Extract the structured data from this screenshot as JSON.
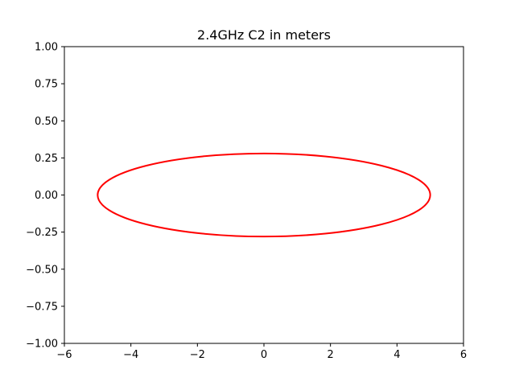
{
  "chart_data": {
    "type": "line",
    "title": "2.4GHz C2 in meters",
    "xlabel": "",
    "ylabel": "",
    "xlim": [
      -6,
      6
    ],
    "ylim": [
      -1.0,
      1.0
    ],
    "x_ticks": [
      -6,
      -4,
      -2,
      0,
      2,
      4,
      6
    ],
    "x_tick_labels": [
      "−6",
      "−4",
      "−2",
      "0",
      "2",
      "4",
      "6"
    ],
    "y_ticks": [
      -1.0,
      -0.75,
      -0.5,
      -0.25,
      0.0,
      0.25,
      0.5,
      0.75,
      1.0
    ],
    "y_tick_labels": [
      "−1.00",
      "−0.75",
      "−0.50",
      "−0.25",
      "0.00",
      "0.25",
      "0.50",
      "0.75",
      "1.00"
    ],
    "grid": false,
    "legend": "none",
    "series": [
      {
        "shape": "ellipse",
        "center": [
          0,
          0
        ],
        "semi_major_x": 5.0,
        "semi_minor_y": 0.28,
        "color": "#ff0000"
      }
    ]
  }
}
